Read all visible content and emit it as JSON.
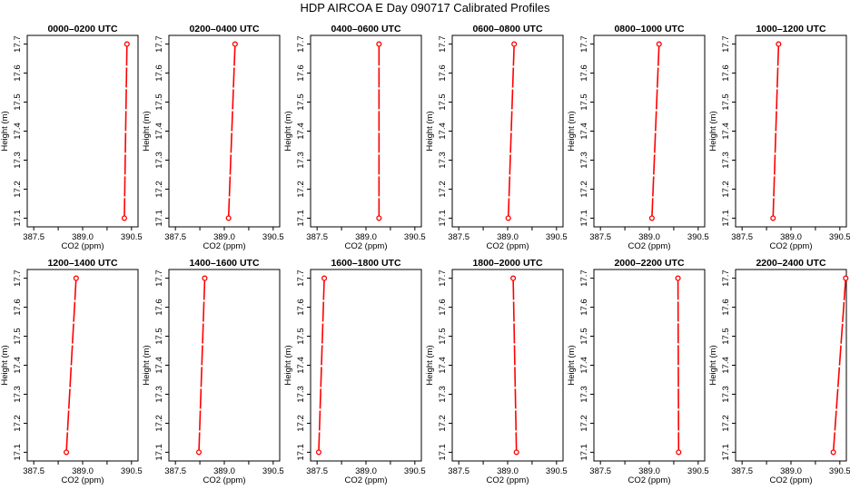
{
  "figure": {
    "title": "HDP AIRCOA E  Day 090717  Calibrated Profiles"
  },
  "chart_data": [
    {
      "type": "line",
      "title": "0000–0200 UTC",
      "xlabel": "CO2 (ppm)",
      "ylabel": "Height (m)",
      "xlim": [
        387.3,
        390.7
      ],
      "ylim": [
        17.07,
        17.73
      ],
      "x_ticks": [
        387.5,
        388.25,
        389.0,
        389.75,
        390.5
      ],
      "x_tick_labels": [
        "387.5",
        "",
        "389.0",
        "",
        "390.5"
      ],
      "y_ticks": [
        17.1,
        17.2,
        17.3,
        17.4,
        17.5,
        17.6,
        17.7
      ],
      "series": [
        {
          "color": "#ff0000",
          "points": [
            {
              "x": 390.28,
              "y": 17.1
            },
            {
              "x": 390.36,
              "y": 17.7
            }
          ]
        }
      ]
    },
    {
      "type": "line",
      "title": "0200–0400 UTC",
      "xlabel": "CO2 (ppm)",
      "ylabel": "Height (m)",
      "xlim": [
        387.3,
        390.7
      ],
      "ylim": [
        17.07,
        17.73
      ],
      "x_ticks": [
        387.5,
        388.25,
        389.0,
        389.75,
        390.5
      ],
      "x_tick_labels": [
        "387.5",
        "",
        "389.0",
        "",
        "390.5"
      ],
      "y_ticks": [
        17.1,
        17.2,
        17.3,
        17.4,
        17.5,
        17.6,
        17.7
      ],
      "series": [
        {
          "color": "#ff0000",
          "points": [
            {
              "x": 389.13,
              "y": 17.1
            },
            {
              "x": 389.33,
              "y": 17.7
            }
          ]
        }
      ]
    },
    {
      "type": "line",
      "title": "0400–0600 UTC",
      "xlabel": "CO2 (ppm)",
      "ylabel": "Height (m)",
      "xlim": [
        387.3,
        390.7
      ],
      "ylim": [
        17.07,
        17.73
      ],
      "x_ticks": [
        387.5,
        388.25,
        389.0,
        389.75,
        390.5
      ],
      "x_tick_labels": [
        "387.5",
        "",
        "389.0",
        "",
        "390.5"
      ],
      "y_ticks": [
        17.1,
        17.2,
        17.3,
        17.4,
        17.5,
        17.6,
        17.7
      ],
      "series": [
        {
          "color": "#ff0000",
          "points": [
            {
              "x": 389.4,
              "y": 17.1
            },
            {
              "x": 389.4,
              "y": 17.7
            }
          ]
        }
      ]
    },
    {
      "type": "line",
      "title": "0600–0800 UTC",
      "xlabel": "CO2 (ppm)",
      "ylabel": "Height (m)",
      "xlim": [
        387.3,
        390.7
      ],
      "ylim": [
        17.07,
        17.73
      ],
      "x_ticks": [
        387.5,
        388.25,
        389.0,
        389.75,
        390.5
      ],
      "x_tick_labels": [
        "387.5",
        "",
        "389.0",
        "",
        "390.5"
      ],
      "y_ticks": [
        17.1,
        17.2,
        17.3,
        17.4,
        17.5,
        17.6,
        17.7
      ],
      "series": [
        {
          "color": "#ff0000",
          "points": [
            {
              "x": 389.02,
              "y": 17.1
            },
            {
              "x": 389.2,
              "y": 17.7
            }
          ]
        }
      ]
    },
    {
      "type": "line",
      "title": "0800–1000 UTC",
      "xlabel": "CO2 (ppm)",
      "ylabel": "Height (m)",
      "xlim": [
        387.3,
        390.7
      ],
      "ylim": [
        17.07,
        17.73
      ],
      "x_ticks": [
        387.5,
        388.25,
        389.0,
        389.75,
        390.5
      ],
      "x_tick_labels": [
        "387.5",
        "",
        "389.0",
        "",
        "390.5"
      ],
      "y_ticks": [
        17.1,
        17.2,
        17.3,
        17.4,
        17.5,
        17.6,
        17.7
      ],
      "series": [
        {
          "color": "#ff0000",
          "points": [
            {
              "x": 389.08,
              "y": 17.1
            },
            {
              "x": 389.3,
              "y": 17.7
            }
          ]
        }
      ]
    },
    {
      "type": "line",
      "title": "1000–1200 UTC",
      "xlabel": "CO2 (ppm)",
      "ylabel": "Height (m)",
      "xlim": [
        387.3,
        390.7
      ],
      "ylim": [
        17.07,
        17.73
      ],
      "x_ticks": [
        387.5,
        388.25,
        389.0,
        389.75,
        390.5
      ],
      "x_tick_labels": [
        "387.5",
        "",
        "389.0",
        "",
        "390.5"
      ],
      "y_ticks": [
        17.1,
        17.2,
        17.3,
        17.4,
        17.5,
        17.6,
        17.7
      ],
      "series": [
        {
          "color": "#ff0000",
          "points": [
            {
              "x": 388.45,
              "y": 17.1
            },
            {
              "x": 388.62,
              "y": 17.7
            }
          ]
        }
      ]
    },
    {
      "type": "line",
      "title": "1200–1400 UTC",
      "xlabel": "CO2 (ppm)",
      "ylabel": "Height (m)",
      "xlim": [
        387.3,
        390.7
      ],
      "ylim": [
        17.07,
        17.73
      ],
      "x_ticks": [
        387.5,
        388.25,
        389.0,
        389.75,
        390.5
      ],
      "x_tick_labels": [
        "387.5",
        "",
        "389.0",
        "",
        "390.5"
      ],
      "y_ticks": [
        17.1,
        17.2,
        17.3,
        17.4,
        17.5,
        17.6,
        17.7
      ],
      "series": [
        {
          "color": "#ff0000",
          "points": [
            {
              "x": 388.5,
              "y": 17.1
            },
            {
              "x": 388.8,
              "y": 17.7
            }
          ]
        }
      ]
    },
    {
      "type": "line",
      "title": "1400–1600 UTC",
      "xlabel": "CO2 (ppm)",
      "ylabel": "Height (m)",
      "xlim": [
        387.3,
        390.7
      ],
      "ylim": [
        17.07,
        17.73
      ],
      "x_ticks": [
        387.5,
        388.25,
        389.0,
        389.75,
        390.5
      ],
      "x_tick_labels": [
        "387.5",
        "",
        "389.0",
        "",
        "390.5"
      ],
      "y_ticks": [
        17.1,
        17.2,
        17.3,
        17.4,
        17.5,
        17.6,
        17.7
      ],
      "series": [
        {
          "color": "#ff0000",
          "points": [
            {
              "x": 388.22,
              "y": 17.1
            },
            {
              "x": 388.4,
              "y": 17.7
            }
          ]
        }
      ]
    },
    {
      "type": "line",
      "title": "1600–1800 UTC",
      "xlabel": "CO2 (ppm)",
      "ylabel": "Height (m)",
      "xlim": [
        387.3,
        390.7
      ],
      "ylim": [
        17.07,
        17.73
      ],
      "x_ticks": [
        387.5,
        388.25,
        389.0,
        389.75,
        390.5
      ],
      "x_tick_labels": [
        "387.5",
        "",
        "389.0",
        "",
        "390.5"
      ],
      "y_ticks": [
        17.1,
        17.2,
        17.3,
        17.4,
        17.5,
        17.6,
        17.7
      ],
      "series": [
        {
          "color": "#ff0000",
          "points": [
            {
              "x": 387.55,
              "y": 17.1
            },
            {
              "x": 387.72,
              "y": 17.7
            }
          ]
        }
      ]
    },
    {
      "type": "line",
      "title": "1800–2000 UTC",
      "xlabel": "CO2 (ppm)",
      "ylabel": "Height (m)",
      "xlim": [
        387.3,
        390.7
      ],
      "ylim": [
        17.07,
        17.73
      ],
      "x_ticks": [
        387.5,
        388.25,
        389.0,
        389.75,
        390.5
      ],
      "x_tick_labels": [
        "387.5",
        "",
        "389.0",
        "",
        "390.5"
      ],
      "y_ticks": [
        17.1,
        17.2,
        17.3,
        17.4,
        17.5,
        17.6,
        17.7
      ],
      "series": [
        {
          "color": "#ff0000",
          "points": [
            {
              "x": 389.27,
              "y": 17.1
            },
            {
              "x": 389.17,
              "y": 17.7
            }
          ]
        }
      ]
    },
    {
      "type": "line",
      "title": "2000–2200 UTC",
      "xlabel": "CO2 (ppm)",
      "ylabel": "Height (m)",
      "xlim": [
        387.3,
        390.7
      ],
      "ylim": [
        17.07,
        17.73
      ],
      "x_ticks": [
        387.5,
        388.25,
        389.0,
        389.75,
        390.5
      ],
      "x_tick_labels": [
        "387.5",
        "",
        "389.0",
        "",
        "390.5"
      ],
      "y_ticks": [
        17.1,
        17.2,
        17.3,
        17.4,
        17.5,
        17.6,
        17.7
      ],
      "series": [
        {
          "color": "#ff0000",
          "points": [
            {
              "x": 389.9,
              "y": 17.1
            },
            {
              "x": 389.88,
              "y": 17.7
            }
          ]
        }
      ]
    },
    {
      "type": "line",
      "title": "2200–2400 UTC",
      "xlabel": "CO2 (ppm)",
      "ylabel": "Height (m)",
      "xlim": [
        387.3,
        390.7
      ],
      "ylim": [
        17.07,
        17.73
      ],
      "x_ticks": [
        387.5,
        388.25,
        389.0,
        389.75,
        390.5
      ],
      "x_tick_labels": [
        "387.5",
        "",
        "389.0",
        "",
        "390.5"
      ],
      "y_ticks": [
        17.1,
        17.2,
        17.3,
        17.4,
        17.5,
        17.6,
        17.7
      ],
      "series": [
        {
          "color": "#ff0000",
          "points": [
            {
              "x": 390.3,
              "y": 17.1
            },
            {
              "x": 390.68,
              "y": 17.7
            }
          ]
        }
      ]
    }
  ]
}
